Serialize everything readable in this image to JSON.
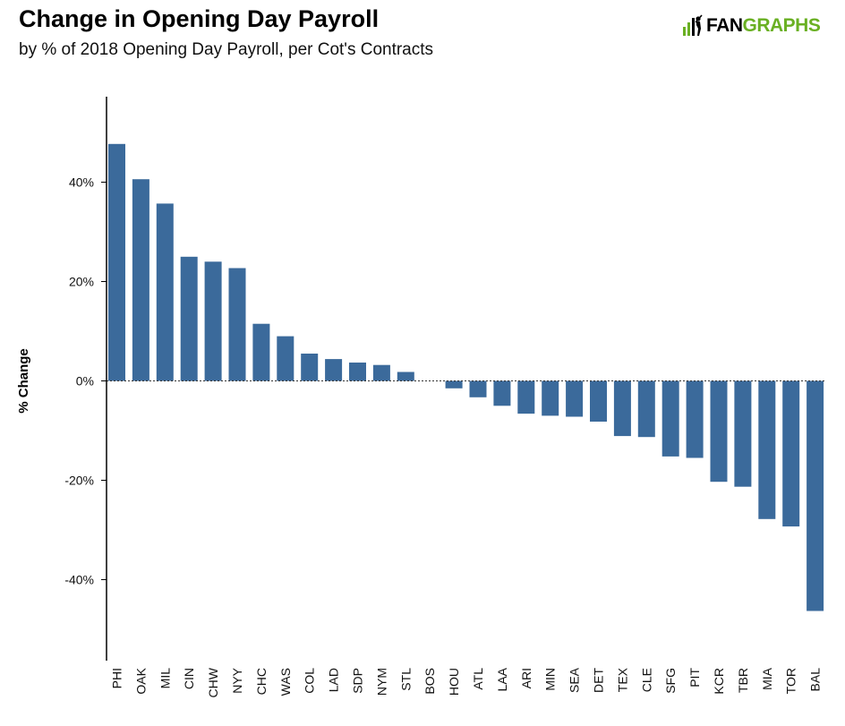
{
  "header": {
    "title": "Change in Opening Day Payroll",
    "subtitle": "by % of 2018 Opening Day Payroll, per Cot's Contracts"
  },
  "logo": {
    "text_fan": "FAN",
    "text_graphs": "GRAPHS",
    "icon": "batter-icon",
    "brand_color": "#6ab023"
  },
  "chart_data": {
    "type": "bar",
    "ylabel": "% Change",
    "xlabel": "",
    "ylim": [
      -55,
      57
    ],
    "yticks": [
      40,
      20,
      0,
      -20,
      -40
    ],
    "ytick_labels": [
      "40%",
      "20%",
      "0%",
      "-20%",
      "-40%"
    ],
    "zero_line": "dotted",
    "bar_color": "#3b6a9b",
    "categories": [
      "PHI",
      "OAK",
      "MIL",
      "CIN",
      "CHW",
      "NYY",
      "CHC",
      "WAS",
      "COL",
      "LAD",
      "SDP",
      "NYM",
      "STL",
      "BOS",
      "HOU",
      "ATL",
      "LAA",
      "ARI",
      "MIN",
      "SEA",
      "DET",
      "TEX",
      "CLE",
      "SFG",
      "PIT",
      "KCR",
      "TBR",
      "MIA",
      "TOR",
      "BAL"
    ],
    "values": [
      47.7,
      40.6,
      35.7,
      25.0,
      24.0,
      22.7,
      11.5,
      9.0,
      5.5,
      4.4,
      3.7,
      3.2,
      1.8,
      0.0,
      -1.5,
      -3.3,
      -5.0,
      -6.6,
      -7.0,
      -7.2,
      -8.2,
      -11.1,
      -11.3,
      -15.2,
      -15.5,
      -20.3,
      -21.3,
      -27.8,
      -29.3,
      -46.3
    ]
  }
}
